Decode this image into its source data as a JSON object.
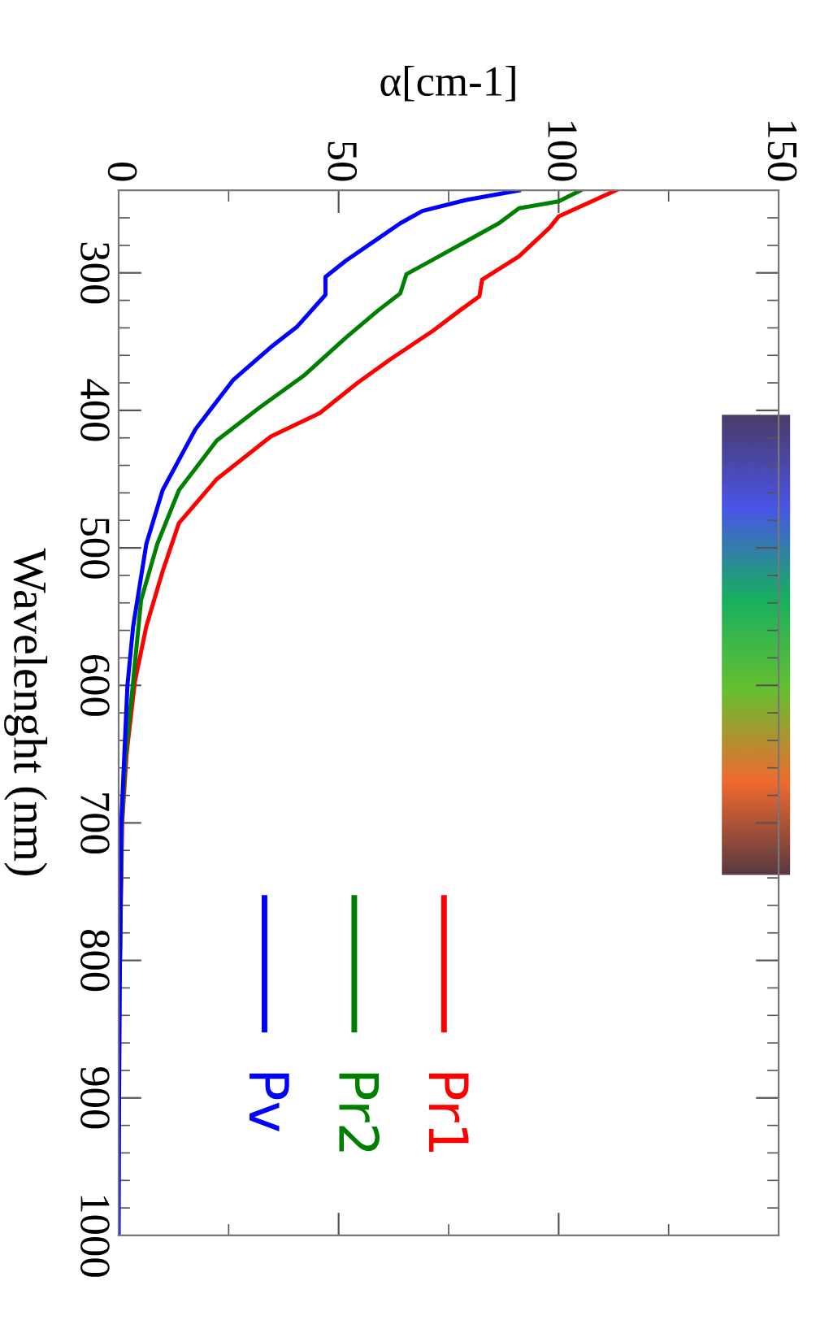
{
  "chart_data": {
    "type": "line",
    "xlabel": "α[cm-1]",
    "ylabel": "Wavelenght (nm)",
    "xlim": [
      0,
      150
    ],
    "ylim": [
      1000,
      240
    ],
    "xticks": [
      0,
      {
        "value": 25,
        "label": null
      },
      50,
      {
        "value": 75,
        "label": null
      },
      100,
      {
        "value": 125,
        "label": null
      },
      150
    ],
    "yticks": [
      {
        "value": 240,
        "label": null
      },
      {
        "value": 260,
        "label": null
      },
      {
        "value": 280,
        "label": null
      },
      300,
      {
        "value": 320,
        "label": null
      },
      {
        "value": 340,
        "label": null
      },
      {
        "value": 360,
        "label": null
      },
      {
        "value": 380,
        "label": null
      },
      400,
      {
        "value": 420,
        "label": null
      },
      {
        "value": 440,
        "label": null
      },
      {
        "value": 460,
        "label": null
      },
      {
        "value": 480,
        "label": null
      },
      500,
      {
        "value": 520,
        "label": null
      },
      {
        "value": 540,
        "label": null
      },
      {
        "value": 560,
        "label": null
      },
      {
        "value": 580,
        "label": null
      },
      600,
      {
        "value": 620,
        "label": null
      },
      {
        "value": 640,
        "label": null
      },
      {
        "value": 660,
        "label": null
      },
      {
        "value": 680,
        "label": null
      },
      700,
      {
        "value": 720,
        "label": null
      },
      {
        "value": 740,
        "label": null
      },
      {
        "value": 760,
        "label": null
      },
      {
        "value": 780,
        "label": null
      },
      800,
      {
        "value": 820,
        "label": null
      },
      {
        "value": 840,
        "label": null
      },
      {
        "value": 860,
        "label": null
      },
      {
        "value": 880,
        "label": null
      },
      900,
      {
        "value": 920,
        "label": null
      },
      {
        "value": 940,
        "label": null
      },
      {
        "value": 960,
        "label": null
      },
      {
        "value": 980,
        "label": null
      },
      1000
    ],
    "grid": false,
    "legend": "bottom",
    "marker": "none",
    "line_style": "solid",
    "series": [
      {
        "name": "Pr1",
        "color": "#ff0000",
        "values": [
          240,
          259,
          267,
          288,
          305,
          317,
          327,
          342,
          363,
          380,
          402,
          419,
          450,
          482,
          517,
          557,
          597,
          650,
          700,
          800
        ],
        "x": [
          113,
          100,
          98,
          91,
          82.6,
          82,
          77.7,
          71.5,
          61.7,
          54.3,
          45.7,
          34.6,
          22.3,
          13.7,
          10,
          6.3,
          3.7,
          1.8,
          0.8,
          0.3
        ]
      },
      {
        "name": "Pr2",
        "color": "#008000",
        "values": [
          240,
          248,
          253,
          264,
          273,
          288,
          301,
          315,
          327,
          347,
          375,
          398,
          422,
          458,
          497,
          538,
          597,
          650,
          700,
          800
        ],
        "x": [
          105,
          100,
          91,
          86.4,
          81.3,
          72.8,
          65.4,
          64,
          59.1,
          51.7,
          42,
          32,
          22.3,
          13.7,
          8.8,
          5.1,
          3.3,
          1.6,
          0.7,
          0.3
        ]
      },
      {
        "name": "Pv",
        "color": "#0000ff",
        "values": [
          240,
          247,
          255,
          264,
          275,
          291,
          303,
          316,
          339,
          354,
          378,
          414,
          458,
          497,
          557,
          600,
          650,
          700,
          800,
          900,
          1000
        ],
        "x": [
          91,
          79,
          69,
          64,
          59,
          51.7,
          47,
          47,
          40.6,
          34.6,
          26,
          17.4,
          10,
          6.3,
          3.3,
          2,
          1.3,
          0.6,
          0.3,
          0.1,
          0
        ]
      }
    ]
  }
}
